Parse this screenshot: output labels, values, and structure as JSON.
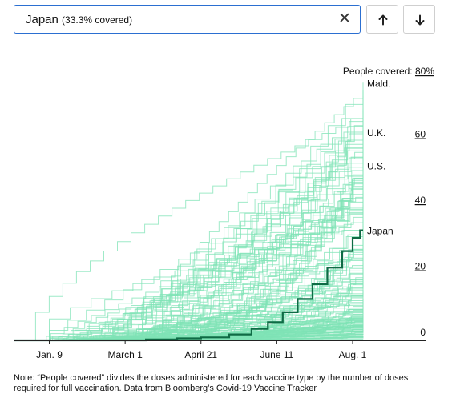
{
  "search": {
    "country": "Japan",
    "coverage_label": "(33.3% covered)",
    "clear_glyph": "✕"
  },
  "nav": {
    "prev_icon": "arrow-up-icon",
    "next_icon": "arrow-down-icon"
  },
  "chart_data": {
    "type": "line",
    "title": "",
    "xlabel": "",
    "ylabel": "People covered:",
    "x_range": [
      "2020-12-16",
      "2021-08-08"
    ],
    "x_ticks": [
      {
        "date": "2021-01-09",
        "label": "Jan. 9"
      },
      {
        "date": "2021-03-01",
        "label": "March 1"
      },
      {
        "date": "2021-04-21",
        "label": "April 21"
      },
      {
        "date": "2021-06-11",
        "label": "June 11"
      },
      {
        "date": "2021-08-01",
        "label": "Aug. 1"
      }
    ],
    "y_ticks": [
      {
        "value": 0,
        "label": "0"
      },
      {
        "value": 20,
        "label": "20"
      },
      {
        "value": 40,
        "label": "40"
      },
      {
        "value": 60,
        "label": "60"
      },
      {
        "value": 80,
        "label": "80%"
      }
    ],
    "ylim": [
      0,
      80
    ],
    "grid": false,
    "colors": {
      "background_lines": "#7fe3b6",
      "highlight": "#0f6b45",
      "axis": "#222222"
    },
    "labeled_series": [
      {
        "name": "Mald.",
        "end_value": 78
      },
      {
        "name": "U.K.",
        "end_value": 63
      },
      {
        "name": "U.S.",
        "end_value": 53
      },
      {
        "name": "Japan",
        "end_value": 33.3
      }
    ],
    "highlight_series": {
      "name": "Japan",
      "points": [
        [
          "2021-02-17",
          0
        ],
        [
          "2021-03-15",
          0.3
        ],
        [
          "2021-04-05",
          0.6
        ],
        [
          "2021-04-21",
          0.9
        ],
        [
          "2021-05-10",
          1.8
        ],
        [
          "2021-05-25",
          3.5
        ],
        [
          "2021-06-05",
          5.5
        ],
        [
          "2021-06-15",
          8.5
        ],
        [
          "2021-06-25",
          12.5
        ],
        [
          "2021-07-05",
          17
        ],
        [
          "2021-07-15",
          22
        ],
        [
          "2021-07-25",
          27
        ],
        [
          "2021-08-01",
          31
        ],
        [
          "2021-08-06",
          33.3
        ]
      ]
    }
  },
  "footnote": "Note: “People covered” divides the doses administered for each vaccine type by the number of doses required for full vaccination. Data from Bloomberg’s Covid-19 Vaccine Tracker"
}
